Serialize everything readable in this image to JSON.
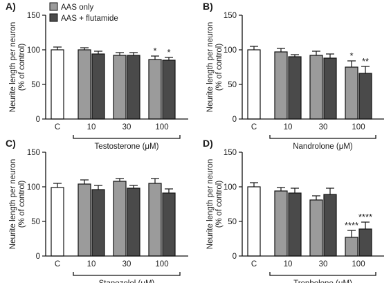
{
  "legend": {
    "items": [
      {
        "label": "AAS only",
        "color": "#9b9b9b"
      },
      {
        "label": "AAS + flutamide",
        "color": "#4a4a4a"
      }
    ]
  },
  "colors": {
    "control": "#ffffff",
    "aas_only": "#9b9b9b",
    "aas_flutamide": "#4a4a4a",
    "stroke": "#111111"
  },
  "chart_data": [
    {
      "type": "bar",
      "panel_label": "A)",
      "ylabel": "Neurite length per neuron\n(% of control)",
      "ylim": [
        0,
        150
      ],
      "yticks": [
        0,
        50,
        100,
        150
      ],
      "group_labels": [
        "C",
        "10",
        "30",
        "100"
      ],
      "drug_label": "Testosterone (μM)",
      "bars": [
        {
          "group": "C",
          "series": "control",
          "value": 100,
          "error": 4,
          "sig": ""
        },
        {
          "group": "10",
          "series": "AAS only",
          "value": 100,
          "error": 3,
          "sig": ""
        },
        {
          "group": "10",
          "series": "AAS + flutamide",
          "value": 94,
          "error": 4,
          "sig": ""
        },
        {
          "group": "30",
          "series": "AAS only",
          "value": 92,
          "error": 4,
          "sig": ""
        },
        {
          "group": "30",
          "series": "AAS + flutamide",
          "value": 92,
          "error": 4,
          "sig": ""
        },
        {
          "group": "100",
          "series": "AAS only",
          "value": 86,
          "error": 5,
          "sig": "*"
        },
        {
          "group": "100",
          "series": "AAS + flutamide",
          "value": 85,
          "error": 4,
          "sig": "*"
        }
      ]
    },
    {
      "type": "bar",
      "panel_label": "B)",
      "ylabel": "Neurite length per neuron\n(% of control)",
      "ylim": [
        0,
        150
      ],
      "yticks": [
        0,
        50,
        100,
        150
      ],
      "group_labels": [
        "C",
        "10",
        "30",
        "100"
      ],
      "drug_label": "Nandrolone (μM)",
      "bars": [
        {
          "group": "C",
          "series": "control",
          "value": 100,
          "error": 5,
          "sig": ""
        },
        {
          "group": "10",
          "series": "AAS only",
          "value": 97,
          "error": 5,
          "sig": ""
        },
        {
          "group": "10",
          "series": "AAS + flutamide",
          "value": 90,
          "error": 3,
          "sig": ""
        },
        {
          "group": "30",
          "series": "AAS only",
          "value": 92,
          "error": 6,
          "sig": ""
        },
        {
          "group": "30",
          "series": "AAS + flutamide",
          "value": 88,
          "error": 6,
          "sig": ""
        },
        {
          "group": "100",
          "series": "AAS only",
          "value": 75,
          "error": 9,
          "sig": "*"
        },
        {
          "group": "100",
          "series": "AAS + flutamide",
          "value": 66,
          "error": 10,
          "sig": "**"
        }
      ]
    },
    {
      "type": "bar",
      "panel_label": "C)",
      "ylabel": "Neurite length per neuron\n(% of control)",
      "ylim": [
        0,
        150
      ],
      "yticks": [
        0,
        50,
        100,
        150
      ],
      "group_labels": [
        "C",
        "10",
        "30",
        "100"
      ],
      "drug_label": "Stanozolol (μM)",
      "bars": [
        {
          "group": "C",
          "series": "control",
          "value": 99,
          "error": 6,
          "sig": ""
        },
        {
          "group": "10",
          "series": "AAS only",
          "value": 104,
          "error": 6,
          "sig": ""
        },
        {
          "group": "10",
          "series": "AAS + flutamide",
          "value": 96,
          "error": 6,
          "sig": ""
        },
        {
          "group": "30",
          "series": "AAS only",
          "value": 108,
          "error": 4,
          "sig": ""
        },
        {
          "group": "30",
          "series": "AAS + flutamide",
          "value": 98,
          "error": 4,
          "sig": ""
        },
        {
          "group": "100",
          "series": "AAS only",
          "value": 105,
          "error": 7,
          "sig": ""
        },
        {
          "group": "100",
          "series": "AAS + flutamide",
          "value": 91,
          "error": 6,
          "sig": ""
        }
      ]
    },
    {
      "type": "bar",
      "panel_label": "D)",
      "ylabel": "Neurite length per neuron\n(% of control)",
      "ylim": [
        0,
        150
      ],
      "yticks": [
        0,
        50,
        100,
        150
      ],
      "group_labels": [
        "C",
        "10",
        "30",
        "100"
      ],
      "drug_label": "Trenbolone (μM)",
      "bars": [
        {
          "group": "C",
          "series": "control",
          "value": 100,
          "error": 6,
          "sig": ""
        },
        {
          "group": "10",
          "series": "AAS only",
          "value": 94,
          "error": 5,
          "sig": ""
        },
        {
          "group": "10",
          "series": "AAS + flutamide",
          "value": 91,
          "error": 7,
          "sig": ""
        },
        {
          "group": "30",
          "series": "AAS only",
          "value": 81,
          "error": 6,
          "sig": ""
        },
        {
          "group": "30",
          "series": "AAS + flutamide",
          "value": 89,
          "error": 9,
          "sig": ""
        },
        {
          "group": "100",
          "series": "AAS only",
          "value": 27,
          "error": 10,
          "sig": "****"
        },
        {
          "group": "100",
          "series": "AAS + flutamide",
          "value": 39,
          "error": 10,
          "sig": "****"
        }
      ]
    }
  ]
}
